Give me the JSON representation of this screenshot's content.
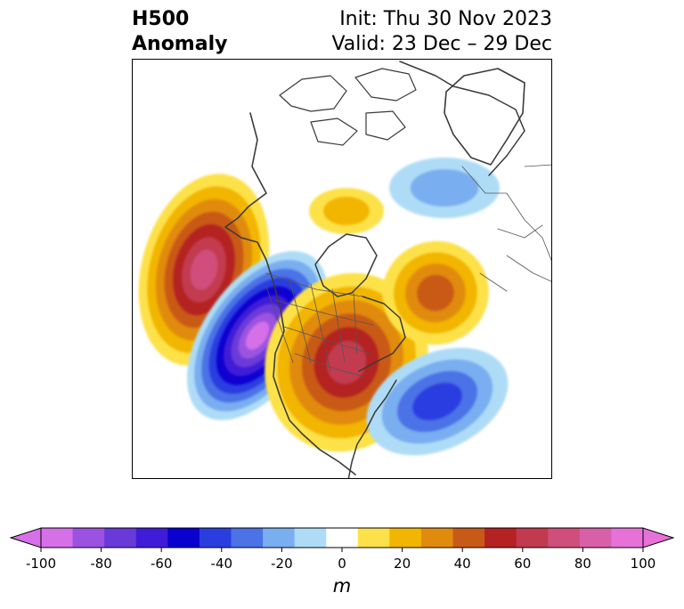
{
  "header": {
    "title_line1": "H500",
    "title_line2": "Anomaly",
    "init_text": "Init: Thu 30 Nov 2023",
    "valid_text": "Valid: 23 Dec – 29 Dec"
  },
  "map": {
    "projection": "polar-stereographic-north-america",
    "field": "500 hPa geopotential height anomaly",
    "anomaly_features": [
      {
        "name": "north-pacific-ridge",
        "sign": "positive",
        "peak_m": 80
      },
      {
        "name": "west-coast-trough",
        "sign": "negative",
        "peak_m": -100
      },
      {
        "name": "central-canada-ridge",
        "sign": "positive",
        "peak_m": 70
      },
      {
        "name": "greenland-ridge",
        "sign": "positive",
        "peak_m": 50
      },
      {
        "name": "hudson-bay-north-ridge",
        "sign": "positive",
        "peak_m": 30
      },
      {
        "name": "arctic-russia-trough",
        "sign": "negative",
        "peak_m": -30
      },
      {
        "name": "western-atlantic-trough",
        "sign": "negative",
        "peak_m": -50
      }
    ]
  },
  "colorbar": {
    "unit": "m",
    "extend": "both",
    "ticks": [
      "-100",
      "-80",
      "-60",
      "-40",
      "-20",
      "0",
      "20",
      "40",
      "60",
      "80",
      "100"
    ],
    "levels": [
      -100,
      -90,
      -80,
      -70,
      -60,
      -50,
      -40,
      -30,
      -20,
      -10,
      10,
      20,
      30,
      40,
      50,
      60,
      70,
      80,
      90,
      100
    ],
    "colors": [
      "#d670e8",
      "#9b52e0",
      "#6a3ad8",
      "#3f1cd8",
      "#0a00d0",
      "#2a3ee0",
      "#4b72e6",
      "#79aef0",
      "#aedcf6",
      "#ffffff",
      "#fde14a",
      "#f2b500",
      "#e08b0e",
      "#c85a18",
      "#b42222",
      "#c23a50",
      "#d04e7c",
      "#d860a8",
      "#e672d8"
    ],
    "under_color": "#d670e8",
    "over_color": "#e672d8"
  }
}
